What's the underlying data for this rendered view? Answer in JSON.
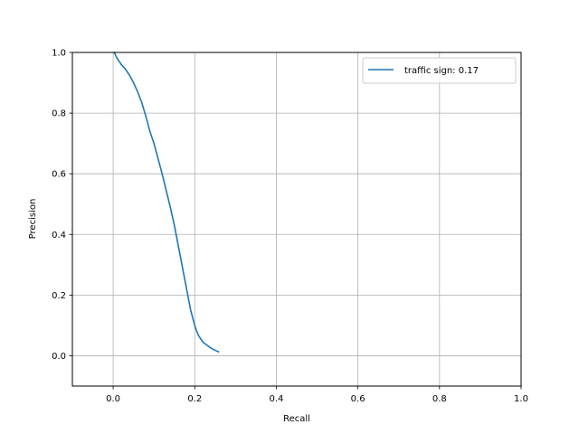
{
  "chart_data": {
    "type": "line",
    "xlabel": "Recall",
    "ylabel": "Precision",
    "xlim": [
      -0.1,
      1.0
    ],
    "ylim": [
      -0.1,
      1.0
    ],
    "xticks": [
      0.0,
      0.2,
      0.4,
      0.6,
      0.8,
      1.0
    ],
    "yticks": [
      0.0,
      0.2,
      0.4,
      0.6,
      0.8,
      1.0
    ],
    "xtick_labels": [
      "0.0",
      "0.2",
      "0.4",
      "0.6",
      "0.8",
      "1.0"
    ],
    "ytick_labels": [
      "0.0",
      "0.2",
      "0.4",
      "0.6",
      "0.8",
      "1.0"
    ],
    "grid": true,
    "legend_position": "top-right",
    "series": [
      {
        "name": "traffic sign: 0.17",
        "color": "#1f77b4",
        "x": [
          0.0,
          0.003,
          0.006,
          0.01,
          0.015,
          0.02,
          0.03,
          0.04,
          0.05,
          0.06,
          0.07,
          0.08,
          0.09,
          0.1,
          0.11,
          0.12,
          0.13,
          0.14,
          0.15,
          0.16,
          0.17,
          0.18,
          0.19,
          0.2,
          0.205,
          0.21,
          0.215,
          0.22,
          0.23,
          0.24,
          0.25,
          0.26
        ],
        "y": [
          1.0,
          1.0,
          0.99,
          0.98,
          0.97,
          0.96,
          0.945,
          0.925,
          0.9,
          0.87,
          0.835,
          0.79,
          0.74,
          0.7,
          0.65,
          0.6,
          0.545,
          0.49,
          0.43,
          0.36,
          0.29,
          0.22,
          0.15,
          0.1,
          0.08,
          0.065,
          0.055,
          0.045,
          0.035,
          0.025,
          0.018,
          0.012
        ]
      }
    ]
  }
}
